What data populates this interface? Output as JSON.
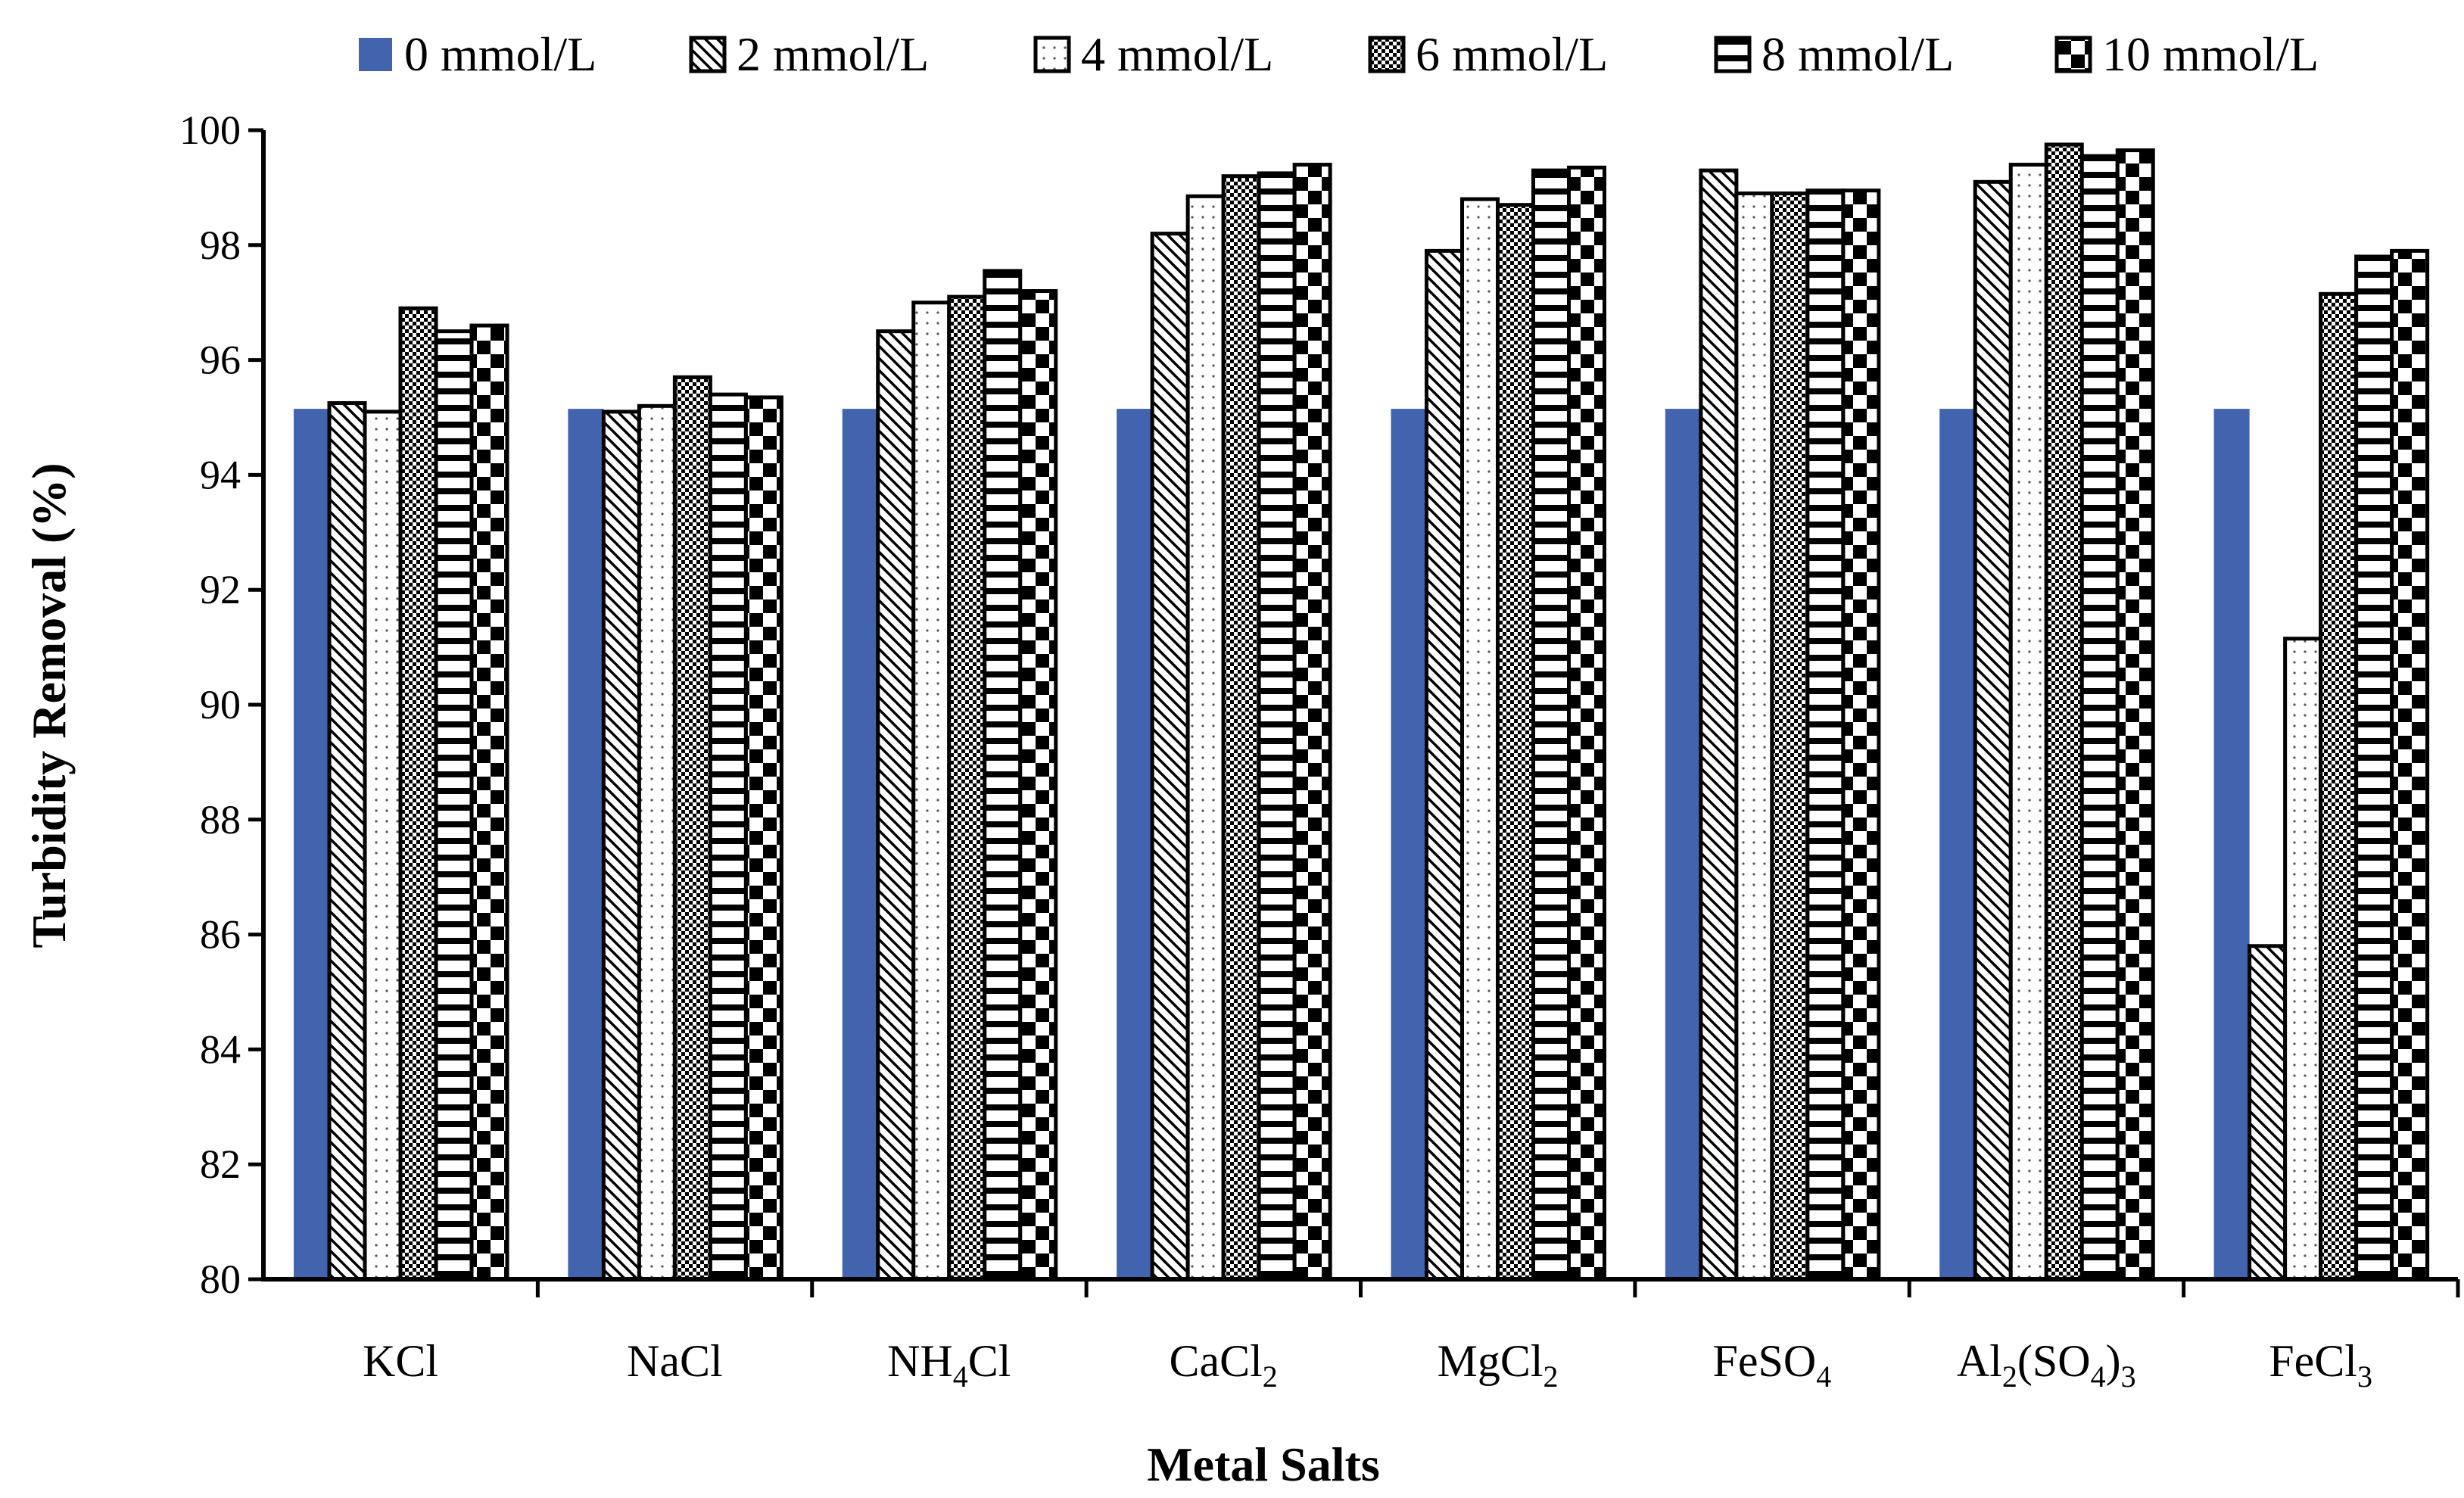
{
  "chart_data": {
    "type": "bar",
    "title": "",
    "xlabel": "Metal Salts",
    "ylabel": "Turbidity Removal (%)",
    "ylim": [
      80,
      100
    ],
    "ytick_step": 2,
    "yticks": [
      "80",
      "82",
      "84",
      "86",
      "88",
      "90",
      "92",
      "94",
      "96",
      "98",
      "100"
    ],
    "legend_position": "top",
    "categories": [
      {
        "base": "KCl",
        "parts": [
          {
            "t": "KCl",
            "sub": false
          }
        ]
      },
      {
        "base": "NaCl",
        "parts": [
          {
            "t": "NaCl",
            "sub": false
          }
        ]
      },
      {
        "base": "NH4Cl",
        "parts": [
          {
            "t": "NH",
            "sub": false
          },
          {
            "t": "4",
            "sub": true
          },
          {
            "t": "Cl",
            "sub": false
          }
        ]
      },
      {
        "base": "CaCl2",
        "parts": [
          {
            "t": "CaCl",
            "sub": false
          },
          {
            "t": "2",
            "sub": true
          }
        ]
      },
      {
        "base": "MgCl2",
        "parts": [
          {
            "t": "MgCl",
            "sub": false
          },
          {
            "t": "2",
            "sub": true
          }
        ]
      },
      {
        "base": "FeSO4",
        "parts": [
          {
            "t": "FeSO",
            "sub": false
          },
          {
            "t": "4",
            "sub": true
          }
        ]
      },
      {
        "base": "Al2(SO4)3",
        "parts": [
          {
            "t": "Al",
            "sub": false
          },
          {
            "t": "2",
            "sub": true
          },
          {
            "t": "(SO",
            "sub": false
          },
          {
            "t": "4",
            "sub": true
          },
          {
            "t": ")",
            "sub": false
          },
          {
            "t": "3",
            "sub": true
          }
        ]
      },
      {
        "base": "FeCl3",
        "parts": [
          {
            "t": "FeCl",
            "sub": false
          },
          {
            "t": "3",
            "sub": true
          }
        ]
      }
    ],
    "series": [
      {
        "name": "0 mmol/L",
        "pattern": "solid",
        "color": "#4263AE",
        "values": [
          95.15,
          95.15,
          95.15,
          95.15,
          95.15,
          95.15,
          95.15,
          95.15
        ]
      },
      {
        "name": "2 mmol/L",
        "pattern": "diagonal",
        "values": [
          95.25,
          95.1,
          96.5,
          98.2,
          97.9,
          99.3,
          99.1,
          85.8
        ]
      },
      {
        "name": "4 mmol/L",
        "pattern": "dots",
        "values": [
          95.1,
          95.2,
          97.0,
          98.85,
          98.8,
          98.9,
          99.4,
          91.15
        ]
      },
      {
        "name": "6 mmol/L",
        "pattern": "checker",
        "values": [
          96.9,
          95.7,
          97.1,
          99.2,
          98.7,
          98.9,
          99.75,
          97.15
        ]
      },
      {
        "name": "8 mmol/L",
        "pattern": "hstripes",
        "values": [
          96.5,
          95.4,
          97.55,
          99.25,
          99.3,
          98.95,
          99.55,
          97.8
        ]
      },
      {
        "name": "10 mmol/L",
        "pattern": "bigchecker",
        "values": [
          96.6,
          95.35,
          97.2,
          99.4,
          99.35,
          98.95,
          99.65,
          97.9
        ]
      }
    ]
  }
}
